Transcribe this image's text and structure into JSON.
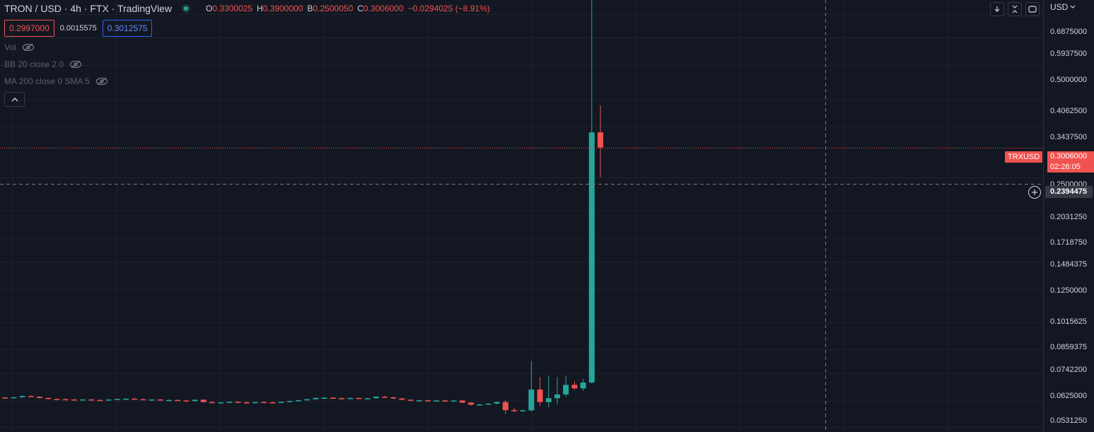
{
  "header": {
    "title": "TRON / USD · 4h · FTX · TradingView",
    "ohlc": {
      "o_label": "O",
      "o_value": "0.3300025",
      "h_label": "H",
      "h_value": "0.3900000",
      "b_label": "B",
      "b_value": "0.2500050",
      "c_label": "C",
      "c_value": "0.3006000",
      "change": "−0.0294025 (−8.91%)"
    },
    "bid": "0.2997000",
    "spread": "0.0015575",
    "ask": "0.3012575"
  },
  "indicators": [
    {
      "label": "Vol"
    },
    {
      "label": "BB 20 close 2 0"
    },
    {
      "label": "MA 200 close 0 SMA 5"
    }
  ],
  "price_axis": {
    "currency": "USD",
    "labels": [
      "0.6875000",
      "0.5937500",
      "0.5000000",
      "0.4062500",
      "0.3437500",
      "0.2500000",
      "0.2031250",
      "0.1718750",
      "0.1484375",
      "0.1250000",
      "0.1015625",
      "0.0859375",
      "0.0742200",
      "0.0625000",
      "0.0531250"
    ]
  },
  "last_price": {
    "symbol": "TRXUSD",
    "value": "0.3006000",
    "countdown": "02:26:05"
  },
  "crosshair": {
    "price": "0.2394475"
  },
  "colors": {
    "up": "#26a69a",
    "down": "#ef5350",
    "background": "#131722",
    "grid": "#1e222d",
    "blue": "#2962ff"
  },
  "icons": {
    "eye": "eye-slash-icon",
    "collapse": "chevron-up-icon",
    "scroll": "arrow-down-icon",
    "fullscreen": "collapse-icon",
    "screenshot": "restore-icon"
  },
  "chart_data": {
    "type": "candlestick",
    "scale": "log",
    "ylim": [
      0.0515,
      0.75
    ],
    "candles": [
      {
        "o": 0.0638,
        "h": 0.0641,
        "l": 0.0634,
        "c": 0.0637
      },
      {
        "o": 0.0637,
        "h": 0.064,
        "l": 0.0634,
        "c": 0.0639
      },
      {
        "o": 0.0639,
        "h": 0.0645,
        "l": 0.0637,
        "c": 0.0644
      },
      {
        "o": 0.0644,
        "h": 0.0646,
        "l": 0.064,
        "c": 0.0641
      },
      {
        "o": 0.0641,
        "h": 0.0643,
        "l": 0.0635,
        "c": 0.0636
      },
      {
        "o": 0.0636,
        "h": 0.0638,
        "l": 0.063,
        "c": 0.0632
      },
      {
        "o": 0.0632,
        "h": 0.0634,
        "l": 0.0628,
        "c": 0.0631
      },
      {
        "o": 0.0631,
        "h": 0.0635,
        "l": 0.0629,
        "c": 0.063
      },
      {
        "o": 0.063,
        "h": 0.0632,
        "l": 0.0626,
        "c": 0.0628
      },
      {
        "o": 0.0628,
        "h": 0.0632,
        "l": 0.0626,
        "c": 0.063
      },
      {
        "o": 0.063,
        "h": 0.0633,
        "l": 0.0627,
        "c": 0.0628
      },
      {
        "o": 0.0628,
        "h": 0.0631,
        "l": 0.0625,
        "c": 0.0627
      },
      {
        "o": 0.0627,
        "h": 0.0631,
        "l": 0.0625,
        "c": 0.063
      },
      {
        "o": 0.063,
        "h": 0.0633,
        "l": 0.0628,
        "c": 0.0632
      },
      {
        "o": 0.0632,
        "h": 0.0635,
        "l": 0.0629,
        "c": 0.0633
      },
      {
        "o": 0.0633,
        "h": 0.0636,
        "l": 0.063,
        "c": 0.0631
      },
      {
        "o": 0.0631,
        "h": 0.0633,
        "l": 0.0627,
        "c": 0.0628
      },
      {
        "o": 0.0628,
        "h": 0.0631,
        "l": 0.0625,
        "c": 0.063
      },
      {
        "o": 0.063,
        "h": 0.0632,
        "l": 0.0626,
        "c": 0.0627
      },
      {
        "o": 0.0627,
        "h": 0.063,
        "l": 0.0624,
        "c": 0.0628
      },
      {
        "o": 0.0628,
        "h": 0.0631,
        "l": 0.0625,
        "c": 0.0626
      },
      {
        "o": 0.0626,
        "h": 0.0628,
        "l": 0.0622,
        "c": 0.0624
      },
      {
        "o": 0.0624,
        "h": 0.063,
        "l": 0.0622,
        "c": 0.0629
      },
      {
        "o": 0.0629,
        "h": 0.0631,
        "l": 0.0618,
        "c": 0.062
      },
      {
        "o": 0.062,
        "h": 0.0623,
        "l": 0.0616,
        "c": 0.0617
      },
      {
        "o": 0.0617,
        "h": 0.0621,
        "l": 0.0615,
        "c": 0.0619
      },
      {
        "o": 0.0619,
        "h": 0.0622,
        "l": 0.0616,
        "c": 0.0621
      },
      {
        "o": 0.0621,
        "h": 0.0623,
        "l": 0.0617,
        "c": 0.0619
      },
      {
        "o": 0.0619,
        "h": 0.0622,
        "l": 0.0616,
        "c": 0.0618
      },
      {
        "o": 0.0618,
        "h": 0.0621,
        "l": 0.0615,
        "c": 0.062
      },
      {
        "o": 0.062,
        "h": 0.0623,
        "l": 0.0617,
        "c": 0.0619
      },
      {
        "o": 0.0619,
        "h": 0.0622,
        "l": 0.0616,
        "c": 0.0618
      },
      {
        "o": 0.0618,
        "h": 0.0622,
        "l": 0.0616,
        "c": 0.0621
      },
      {
        "o": 0.0621,
        "h": 0.0625,
        "l": 0.0619,
        "c": 0.0624
      },
      {
        "o": 0.0624,
        "h": 0.0628,
        "l": 0.0622,
        "c": 0.0627
      },
      {
        "o": 0.0627,
        "h": 0.0633,
        "l": 0.0625,
        "c": 0.0631
      },
      {
        "o": 0.0631,
        "h": 0.0638,
        "l": 0.0629,
        "c": 0.0636
      },
      {
        "o": 0.0636,
        "h": 0.0639,
        "l": 0.0632,
        "c": 0.0637
      },
      {
        "o": 0.0637,
        "h": 0.064,
        "l": 0.0633,
        "c": 0.0635
      },
      {
        "o": 0.0635,
        "h": 0.0638,
        "l": 0.0631,
        "c": 0.0634
      },
      {
        "o": 0.0634,
        "h": 0.0637,
        "l": 0.063,
        "c": 0.0636
      },
      {
        "o": 0.0636,
        "h": 0.0638,
        "l": 0.0632,
        "c": 0.0633
      },
      {
        "o": 0.0633,
        "h": 0.0636,
        "l": 0.063,
        "c": 0.0635
      },
      {
        "o": 0.0635,
        "h": 0.0643,
        "l": 0.0633,
        "c": 0.0641
      },
      {
        "o": 0.0641,
        "h": 0.0645,
        "l": 0.0636,
        "c": 0.0638
      },
      {
        "o": 0.0638,
        "h": 0.0641,
        "l": 0.0632,
        "c": 0.0634
      },
      {
        "o": 0.0634,
        "h": 0.0636,
        "l": 0.0628,
        "c": 0.0629
      },
      {
        "o": 0.0629,
        "h": 0.0631,
        "l": 0.0624,
        "c": 0.0626
      },
      {
        "o": 0.0626,
        "h": 0.0629,
        "l": 0.0623,
        "c": 0.0627
      },
      {
        "o": 0.0627,
        "h": 0.0629,
        "l": 0.0622,
        "c": 0.0624
      },
      {
        "o": 0.0624,
        "h": 0.0628,
        "l": 0.0622,
        "c": 0.0626
      },
      {
        "o": 0.0626,
        "h": 0.0628,
        "l": 0.0622,
        "c": 0.0624
      },
      {
        "o": 0.0624,
        "h": 0.0627,
        "l": 0.0621,
        "c": 0.0626
      },
      {
        "o": 0.0626,
        "h": 0.0629,
        "l": 0.0616,
        "c": 0.0618
      },
      {
        "o": 0.0618,
        "h": 0.062,
        "l": 0.0607,
        "c": 0.061
      },
      {
        "o": 0.061,
        "h": 0.0613,
        "l": 0.0606,
        "c": 0.0611
      },
      {
        "o": 0.0611,
        "h": 0.0616,
        "l": 0.0609,
        "c": 0.0614
      },
      {
        "o": 0.0614,
        "h": 0.0622,
        "l": 0.0611,
        "c": 0.062
      },
      {
        "o": 0.062,
        "h": 0.0628,
        "l": 0.0575,
        "c": 0.059
      },
      {
        "o": 0.059,
        "h": 0.0598,
        "l": 0.0583,
        "c": 0.0586
      },
      {
        "o": 0.0586,
        "h": 0.0592,
        "l": 0.0584,
        "c": 0.0589
      },
      {
        "o": 0.0589,
        "h": 0.08,
        "l": 0.0585,
        "c": 0.067
      },
      {
        "o": 0.067,
        "h": 0.0725,
        "l": 0.0605,
        "c": 0.062
      },
      {
        "o": 0.062,
        "h": 0.073,
        "l": 0.06,
        "c": 0.0635
      },
      {
        "o": 0.0635,
        "h": 0.0725,
        "l": 0.061,
        "c": 0.065
      },
      {
        "o": 0.065,
        "h": 0.073,
        "l": 0.064,
        "c": 0.069
      },
      {
        "o": 0.069,
        "h": 0.0705,
        "l": 0.067,
        "c": 0.0675
      },
      {
        "o": 0.0675,
        "h": 0.0715,
        "l": 0.0665,
        "c": 0.07
      },
      {
        "o": 0.07,
        "h": 0.76,
        "l": 0.0695,
        "c": 0.33
      },
      {
        "o": 0.3300025,
        "h": 0.39,
        "l": 0.250005,
        "c": 0.3006
      }
    ]
  }
}
